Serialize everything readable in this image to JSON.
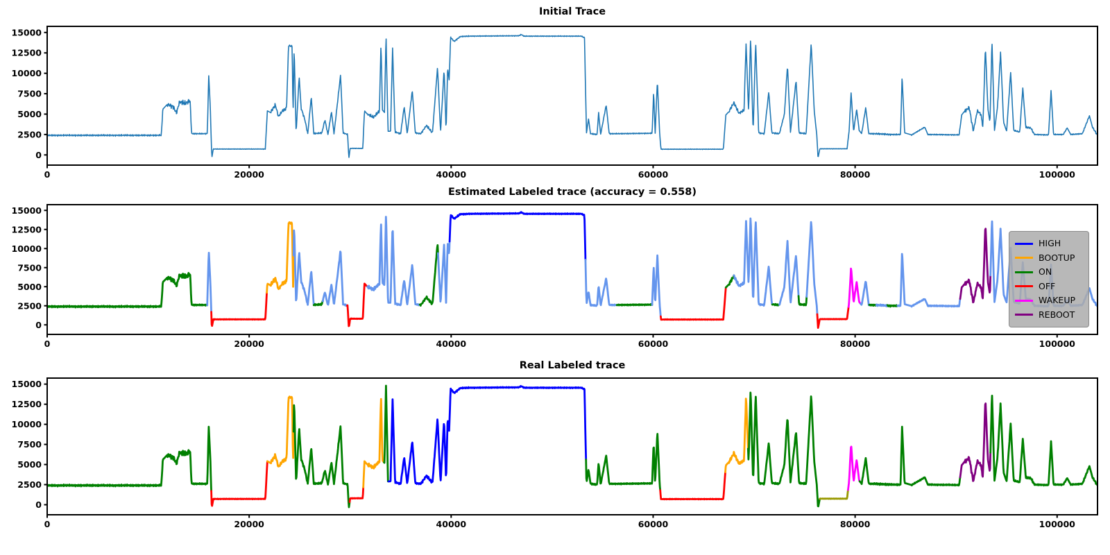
{
  "chart_data": {
    "type": "line",
    "xlim": [
      0,
      104000
    ],
    "ylim": [
      -1250,
      15750
    ],
    "xticks": [
      0,
      20000,
      40000,
      60000,
      80000,
      100000
    ],
    "yticks": [
      0,
      2500,
      5000,
      7500,
      10000,
      12500,
      15000
    ],
    "grid": false,
    "state_colors": {
      "HIGH": "#0000ff",
      "BOOTUP": "#ffa500",
      "ON": "#008000",
      "OFF": "#ff0000",
      "WAKEUP": "#ff00ff",
      "REBOOT": "#800080",
      "UNLABELED": "#6495ed",
      "IDLE": "#999900"
    },
    "waveform_anchors": [
      [
        0,
        2400,
        120
      ],
      [
        11300,
        2400,
        120
      ],
      [
        11450,
        5600,
        0
      ],
      [
        11900,
        6200,
        350
      ],
      [
        12500,
        5900,
        400
      ],
      [
        12800,
        5100,
        250
      ],
      [
        13100,
        6500,
        400
      ],
      [
        13700,
        6300,
        350
      ],
      [
        14150,
        6700,
        300
      ],
      [
        14300,
        2600,
        90
      ],
      [
        15850,
        2600,
        90
      ],
      [
        16000,
        9700,
        0
      ],
      [
        16150,
        5800,
        0
      ],
      [
        16300,
        -350,
        0
      ],
      [
        16450,
        720,
        40
      ],
      [
        21600,
        720,
        40
      ],
      [
        21800,
        5400,
        0
      ],
      [
        22100,
        5200,
        300
      ],
      [
        22600,
        6100,
        250
      ],
      [
        22900,
        4700,
        180
      ],
      [
        23300,
        5400,
        300
      ],
      [
        23700,
        5700,
        200
      ],
      [
        23900,
        13400,
        120
      ],
      [
        24250,
        13300,
        0
      ],
      [
        24350,
        5000,
        0
      ],
      [
        24450,
        13200,
        0
      ],
      [
        24650,
        2700,
        120
      ],
      [
        24950,
        9600,
        0
      ],
      [
        25150,
        5700,
        200
      ],
      [
        25500,
        4400,
        150
      ],
      [
        25800,
        2600,
        100
      ],
      [
        26150,
        7100,
        0
      ],
      [
        26400,
        2600,
        120
      ],
      [
        27200,
        2700,
        150
      ],
      [
        27500,
        4300,
        120
      ],
      [
        27800,
        2500,
        90
      ],
      [
        28150,
        5300,
        0
      ],
      [
        28400,
        2600,
        100
      ],
      [
        28800,
        7000,
        200
      ],
      [
        29050,
        9800,
        0
      ],
      [
        29300,
        2700,
        100
      ],
      [
        29750,
        2500,
        0
      ],
      [
        29870,
        -400,
        0
      ],
      [
        30000,
        800,
        40
      ],
      [
        31250,
        800,
        40
      ],
      [
        31420,
        5400,
        0
      ],
      [
        31700,
        5000,
        250
      ],
      [
        32300,
        4600,
        250
      ],
      [
        32900,
        5400,
        250
      ],
      [
        33050,
        13700,
        0
      ],
      [
        33200,
        5500,
        0
      ],
      [
        33400,
        5200,
        0
      ],
      [
        33550,
        14800,
        0
      ],
      [
        33750,
        2900,
        0
      ],
      [
        34000,
        2900,
        120
      ],
      [
        34200,
        13100,
        0
      ],
      [
        34450,
        2800,
        120
      ],
      [
        35000,
        2600,
        150
      ],
      [
        35350,
        5900,
        0
      ],
      [
        35650,
        2600,
        100
      ],
      [
        36150,
        7900,
        0
      ],
      [
        36450,
        2700,
        100
      ],
      [
        37000,
        2600,
        150
      ],
      [
        37550,
        3600,
        200
      ],
      [
        38150,
        2700,
        150
      ],
      [
        38650,
        10700,
        0
      ],
      [
        38950,
        2800,
        100
      ],
      [
        39300,
        10500,
        0
      ],
      [
        39500,
        2900,
        0
      ],
      [
        39650,
        10700,
        0
      ],
      [
        39800,
        9200,
        0
      ],
      [
        39950,
        14400,
        100
      ],
      [
        40300,
        13900,
        100
      ],
      [
        40900,
        14500,
        80
      ],
      [
        41800,
        14550,
        60
      ],
      [
        46700,
        14600,
        70
      ],
      [
        46950,
        14750,
        60
      ],
      [
        47200,
        14550,
        60
      ],
      [
        52900,
        14550,
        70
      ],
      [
        53200,
        14350,
        0
      ],
      [
        53400,
        2700,
        0
      ],
      [
        53600,
        4400,
        0
      ],
      [
        53800,
        2600,
        100
      ],
      [
        54450,
        2500,
        80
      ],
      [
        54600,
        5200,
        0
      ],
      [
        54800,
        2500,
        80
      ],
      [
        55350,
        6100,
        0
      ],
      [
        55650,
        2600,
        80
      ],
      [
        56400,
        2600,
        80
      ],
      [
        59900,
        2650,
        80
      ],
      [
        60050,
        7800,
        0
      ],
      [
        60200,
        2650,
        0
      ],
      [
        60420,
        9100,
        0
      ],
      [
        60650,
        2500,
        0
      ],
      [
        60780,
        700,
        40
      ],
      [
        66950,
        700,
        40
      ],
      [
        67200,
        4900,
        0
      ],
      [
        67500,
        5300,
        250
      ],
      [
        68000,
        6400,
        250
      ],
      [
        68500,
        5100,
        200
      ],
      [
        69000,
        5500,
        200
      ],
      [
        69200,
        13600,
        0
      ],
      [
        69450,
        5300,
        0
      ],
      [
        69650,
        14400,
        0
      ],
      [
        69900,
        2800,
        0
      ],
      [
        70150,
        13800,
        0
      ],
      [
        70450,
        2700,
        120
      ],
      [
        71000,
        2600,
        100
      ],
      [
        71450,
        7700,
        0
      ],
      [
        71750,
        2700,
        120
      ],
      [
        72500,
        2600,
        100
      ],
      [
        73000,
        5000,
        150
      ],
      [
        73300,
        11000,
        0
      ],
      [
        73600,
        2800,
        100
      ],
      [
        74150,
        9100,
        0
      ],
      [
        74450,
        2700,
        120
      ],
      [
        75150,
        2600,
        100
      ],
      [
        75650,
        13700,
        0
      ],
      [
        75950,
        5400,
        0
      ],
      [
        76200,
        2500,
        0
      ],
      [
        76330,
        -400,
        0
      ],
      [
        76500,
        750,
        30
      ],
      [
        79200,
        750,
        30
      ],
      [
        79400,
        2900,
        0
      ],
      [
        79600,
        7600,
        0
      ],
      [
        79850,
        2900,
        100
      ],
      [
        80150,
        5600,
        0
      ],
      [
        80400,
        3000,
        0
      ],
      [
        80650,
        2600,
        100
      ],
      [
        81050,
        5800,
        0
      ],
      [
        81350,
        2600,
        100
      ],
      [
        82000,
        2600,
        130
      ],
      [
        83500,
        2500,
        100
      ],
      [
        84500,
        2500,
        80
      ],
      [
        84650,
        9700,
        0
      ],
      [
        84900,
        2700,
        0
      ],
      [
        85600,
        2450,
        80
      ],
      [
        86900,
        3400,
        0
      ],
      [
        87200,
        2500,
        80
      ],
      [
        90300,
        2450,
        80
      ],
      [
        90550,
        4900,
        0
      ],
      [
        90800,
        5300,
        300
      ],
      [
        91300,
        5800,
        300
      ],
      [
        91700,
        2900,
        150
      ],
      [
        92100,
        5400,
        250
      ],
      [
        92450,
        5000,
        250
      ],
      [
        92650,
        3400,
        150
      ],
      [
        92900,
        13200,
        0
      ],
      [
        93150,
        5600,
        0
      ],
      [
        93350,
        4000,
        0
      ],
      [
        93550,
        14000,
        0
      ],
      [
        93800,
        3000,
        0
      ],
      [
        94100,
        5900,
        200
      ],
      [
        94400,
        12600,
        0
      ],
      [
        94700,
        4000,
        0
      ],
      [
        95000,
        2900,
        100
      ],
      [
        95400,
        10100,
        0
      ],
      [
        95700,
        3000,
        100
      ],
      [
        96300,
        2800,
        100
      ],
      [
        96600,
        8200,
        0
      ],
      [
        96900,
        3400,
        150
      ],
      [
        97400,
        3300,
        150
      ],
      [
        97750,
        2500,
        80
      ],
      [
        99150,
        2450,
        80
      ],
      [
        99400,
        7900,
        0
      ],
      [
        99650,
        2500,
        80
      ],
      [
        100600,
        2500,
        100
      ],
      [
        101000,
        3300,
        0
      ],
      [
        101350,
        2500,
        80
      ],
      [
        102500,
        2600,
        130
      ],
      [
        103200,
        4800,
        0
      ],
      [
        103500,
        3400,
        150
      ],
      [
        104000,
        2400,
        0
      ]
    ],
    "subplots": [
      {
        "title": "Initial Trace",
        "mode": "single",
        "line_color": "#1f77b4"
      },
      {
        "title": "Estimated Labeled trace (accuracy = 0.558)",
        "accuracy": 0.558,
        "mode": "segments",
        "legend": [
          "HIGH",
          "BOOTUP",
          "ON",
          "OFF",
          "WAKEUP",
          "REBOOT"
        ],
        "legend_position": "right",
        "segments": [
          [
            0,
            15850,
            "ON"
          ],
          [
            15850,
            16250,
            "UNLABELED"
          ],
          [
            16250,
            21750,
            "OFF"
          ],
          [
            21750,
            24400,
            "BOOTUP"
          ],
          [
            24400,
            26400,
            "UNLABELED"
          ],
          [
            26400,
            27300,
            "ON"
          ],
          [
            27300,
            29700,
            "UNLABELED"
          ],
          [
            29700,
            31700,
            "OFF"
          ],
          [
            31700,
            36900,
            "UNLABELED"
          ],
          [
            36900,
            38700,
            "ON"
          ],
          [
            38700,
            39850,
            "UNLABELED"
          ],
          [
            39850,
            53300,
            "HIGH"
          ],
          [
            53300,
            56400,
            "UNLABELED"
          ],
          [
            56400,
            59900,
            "ON"
          ],
          [
            59900,
            60750,
            "UNLABELED"
          ],
          [
            60750,
            67200,
            "OFF"
          ],
          [
            67200,
            68000,
            "ON"
          ],
          [
            68000,
            71800,
            "UNLABELED"
          ],
          [
            71800,
            72500,
            "ON"
          ],
          [
            72500,
            74400,
            "UNLABELED"
          ],
          [
            74400,
            75200,
            "ON"
          ],
          [
            75200,
            76250,
            "UNLABELED"
          ],
          [
            76250,
            79350,
            "OFF"
          ],
          [
            79350,
            80550,
            "WAKEUP"
          ],
          [
            80550,
            81400,
            "UNLABELED"
          ],
          [
            81400,
            82100,
            "ON"
          ],
          [
            82100,
            83200,
            "UNLABELED"
          ],
          [
            83200,
            84200,
            "ON"
          ],
          [
            84200,
            90400,
            "UNLABELED"
          ],
          [
            90400,
            93400,
            "REBOOT"
          ],
          [
            93400,
            104000,
            "UNLABELED"
          ]
        ]
      },
      {
        "title": "Real Labeled trace",
        "mode": "segments",
        "segments": [
          [
            0,
            16250,
            "ON"
          ],
          [
            16250,
            21800,
            "OFF"
          ],
          [
            21800,
            24400,
            "BOOTUP"
          ],
          [
            24400,
            29950,
            "ON"
          ],
          [
            29950,
            31300,
            "OFF"
          ],
          [
            31300,
            33350,
            "BOOTUP"
          ],
          [
            33350,
            33800,
            "ON"
          ],
          [
            33800,
            53350,
            "HIGH"
          ],
          [
            53350,
            60700,
            "ON"
          ],
          [
            60700,
            67150,
            "OFF"
          ],
          [
            67150,
            69400,
            "BOOTUP"
          ],
          [
            69400,
            76500,
            "ON"
          ],
          [
            76500,
            79300,
            "IDLE"
          ],
          [
            79300,
            80450,
            "WAKEUP"
          ],
          [
            80450,
            90400,
            "ON"
          ],
          [
            90400,
            93400,
            "REBOOT"
          ],
          [
            93400,
            104000,
            "ON"
          ]
        ]
      }
    ]
  }
}
